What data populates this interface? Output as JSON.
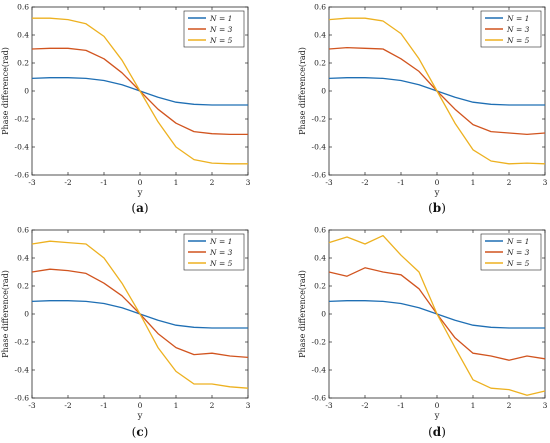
{
  "chart_data": [
    {
      "type": "line",
      "panel_label": "a",
      "xlabel": "y",
      "ylabel": "Phase difference(rad)",
      "xlim": [
        -3,
        3
      ],
      "ylim": [
        -0.6,
        0.6
      ],
      "xticks": [
        "-3",
        "-2",
        "-1",
        "0",
        "1",
        "2",
        "3"
      ],
      "yticks": [
        "-0.6",
        "-0.4",
        "-0.2",
        "0",
        "0.2",
        "0.4",
        "0.6"
      ],
      "grid": false,
      "legend_position": "top-right",
      "x": [
        -3.0,
        -2.5,
        -2.0,
        -1.5,
        -1.0,
        -0.5,
        0.0,
        0.5,
        1.0,
        1.5,
        2.0,
        2.5,
        3.0
      ],
      "series": [
        {
          "name": "N = 1",
          "color": "#1f6fb4",
          "values": [
            0.09,
            0.095,
            0.095,
            0.09,
            0.075,
            0.045,
            0.0,
            -0.045,
            -0.08,
            -0.095,
            -0.1,
            -0.1,
            -0.1
          ]
        },
        {
          "name": "N = 3",
          "color": "#d1541f",
          "values": [
            0.3,
            0.305,
            0.305,
            0.29,
            0.23,
            0.13,
            0.0,
            -0.13,
            -0.23,
            -0.29,
            -0.305,
            -0.31,
            -0.31
          ]
        },
        {
          "name": "N = 5",
          "color": "#edb120",
          "values": [
            0.52,
            0.52,
            0.51,
            0.48,
            0.39,
            0.22,
            0.0,
            -0.22,
            -0.4,
            -0.49,
            -0.515,
            -0.52,
            -0.52
          ]
        }
      ]
    },
    {
      "type": "line",
      "panel_label": "b",
      "xlabel": "y",
      "ylabel": "Phase difference(rad)",
      "xlim": [
        -3,
        3
      ],
      "ylim": [
        -0.6,
        0.6
      ],
      "xticks": [
        "-3",
        "-2",
        "-1",
        "0",
        "1",
        "2",
        "3"
      ],
      "yticks": [
        "-0.6",
        "-0.4",
        "-0.2",
        "0",
        "0.2",
        "0.4",
        "0.6"
      ],
      "grid": false,
      "legend_position": "top-right",
      "x": [
        -3.0,
        -2.5,
        -2.0,
        -1.5,
        -1.0,
        -0.5,
        0.0,
        0.5,
        1.0,
        1.5,
        2.0,
        2.5,
        3.0
      ],
      "series": [
        {
          "name": "N = 1",
          "color": "#1f6fb4",
          "values": [
            0.09,
            0.095,
            0.095,
            0.09,
            0.075,
            0.045,
            0.0,
            -0.045,
            -0.08,
            -0.095,
            -0.1,
            -0.1,
            -0.1
          ]
        },
        {
          "name": "N = 3",
          "color": "#d1541f",
          "values": [
            0.3,
            0.31,
            0.305,
            0.3,
            0.23,
            0.14,
            0.0,
            -0.13,
            -0.24,
            -0.29,
            -0.3,
            -0.31,
            -0.3
          ]
        },
        {
          "name": "N = 5",
          "color": "#edb120",
          "values": [
            0.51,
            0.52,
            0.52,
            0.5,
            0.41,
            0.23,
            0.0,
            -0.23,
            -0.42,
            -0.5,
            -0.52,
            -0.515,
            -0.52
          ]
        }
      ]
    },
    {
      "type": "line",
      "panel_label": "c",
      "xlabel": "y",
      "ylabel": "Phase difference(rad)",
      "xlim": [
        -3,
        3
      ],
      "ylim": [
        -0.6,
        0.6
      ],
      "xticks": [
        "-3",
        "-2",
        "-1",
        "0",
        "1",
        "2",
        "3"
      ],
      "yticks": [
        "-0.6",
        "-0.4",
        "-0.2",
        "0",
        "0.2",
        "0.4",
        "0.6"
      ],
      "grid": false,
      "legend_position": "top-right",
      "x": [
        -3.0,
        -2.5,
        -2.0,
        -1.5,
        -1.0,
        -0.5,
        0.0,
        0.5,
        1.0,
        1.5,
        2.0,
        2.5,
        3.0
      ],
      "series": [
        {
          "name": "N = 1",
          "color": "#1f6fb4",
          "values": [
            0.09,
            0.095,
            0.095,
            0.09,
            0.075,
            0.045,
            0.0,
            -0.045,
            -0.08,
            -0.095,
            -0.1,
            -0.1,
            -0.1
          ]
        },
        {
          "name": "N = 3",
          "color": "#d1541f",
          "values": [
            0.3,
            0.32,
            0.31,
            0.29,
            0.22,
            0.13,
            0.0,
            -0.14,
            -0.24,
            -0.29,
            -0.28,
            -0.3,
            -0.31
          ]
        },
        {
          "name": "N = 5",
          "color": "#edb120",
          "values": [
            0.5,
            0.52,
            0.51,
            0.5,
            0.4,
            0.22,
            0.0,
            -0.24,
            -0.41,
            -0.5,
            -0.5,
            -0.52,
            -0.53
          ]
        }
      ]
    },
    {
      "type": "line",
      "panel_label": "d",
      "xlabel": "y",
      "ylabel": "Phase difference(rad)",
      "xlim": [
        -3,
        3
      ],
      "ylim": [
        -0.6,
        0.6
      ],
      "xticks": [
        "-3",
        "-2",
        "-1",
        "0",
        "1",
        "2",
        "3"
      ],
      "yticks": [
        "-0.6",
        "-0.4",
        "-0.2",
        "0",
        "0.2",
        "0.4",
        "0.6"
      ],
      "grid": false,
      "legend_position": "top-right",
      "x": [
        -3.0,
        -2.5,
        -2.0,
        -1.5,
        -1.0,
        -0.5,
        0.0,
        0.5,
        1.0,
        1.5,
        2.0,
        2.5,
        3.0
      ],
      "series": [
        {
          "name": "N = 1",
          "color": "#1f6fb4",
          "values": [
            0.09,
            0.095,
            0.095,
            0.09,
            0.075,
            0.045,
            0.0,
            -0.045,
            -0.08,
            -0.095,
            -0.1,
            -0.1,
            -0.1
          ]
        },
        {
          "name": "N = 3",
          "color": "#d1541f",
          "values": [
            0.3,
            0.27,
            0.33,
            0.3,
            0.28,
            0.18,
            0.0,
            -0.17,
            -0.28,
            -0.3,
            -0.33,
            -0.3,
            -0.32
          ]
        },
        {
          "name": "N = 5",
          "color": "#edb120",
          "values": [
            0.51,
            0.55,
            0.5,
            0.56,
            0.42,
            0.3,
            0.0,
            -0.24,
            -0.47,
            -0.53,
            -0.54,
            -0.58,
            -0.55
          ]
        }
      ]
    }
  ]
}
